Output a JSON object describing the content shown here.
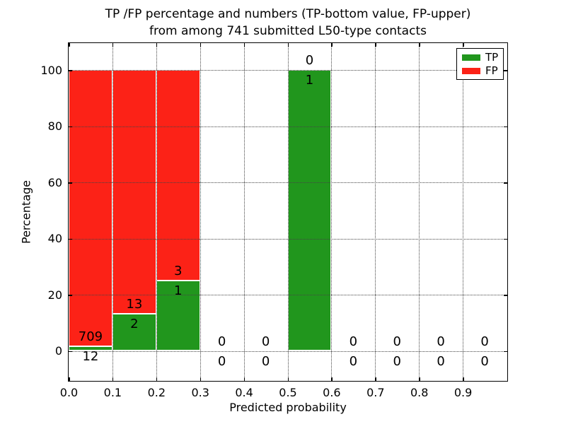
{
  "chart_data": {
    "type": "bar",
    "stacked": true,
    "title": "TP /FP percentage and numbers (TP-bottom value, FP-upper)\nfrom among 741 submitted L50-type contacts",
    "title_line1": "TP /FP percentage and numbers (TP-bottom value, FP-upper)",
    "title_line2": "from among 741 submitted L50-type contacts",
    "xlabel": "Predicted probability",
    "ylabel": "Percentage",
    "total_submitted_contacts": 741,
    "x_tick_labels": [
      "0.0",
      "0.1",
      "0.2",
      "0.3",
      "0.4",
      "0.5",
      "0.6",
      "0.7",
      "0.8",
      "0.9"
    ],
    "x_tick_values": [
      0.0,
      0.1,
      0.2,
      0.3,
      0.4,
      0.5,
      0.6,
      0.7,
      0.8,
      0.9
    ],
    "y_tick_labels": [
      "0",
      "20",
      "40",
      "60",
      "80",
      "100"
    ],
    "y_tick_values": [
      0,
      20,
      40,
      60,
      80,
      100
    ],
    "xlim": [
      0.0,
      1.0
    ],
    "ylim": [
      -11,
      110
    ],
    "grid": "dotted",
    "bin_width": 0.1,
    "bin_starts": [
      0.0,
      0.1,
      0.2,
      0.3,
      0.4,
      0.5,
      0.6,
      0.7,
      0.8,
      0.9
    ],
    "series": [
      {
        "name": "TP",
        "color": "#21961d",
        "counts": [
          12,
          2,
          1,
          0,
          0,
          1,
          0,
          0,
          0,
          0
        ],
        "values_pct": [
          1.66,
          13.33,
          25,
          0,
          0,
          100,
          0,
          0,
          0,
          0
        ]
      },
      {
        "name": "FP",
        "color": "#fc2217",
        "counts": [
          709,
          13,
          3,
          0,
          0,
          0,
          0,
          0,
          0,
          0
        ],
        "values_pct": [
          98.34,
          86.67,
          75,
          0,
          0,
          0,
          0,
          0,
          0,
          0
        ]
      }
    ],
    "bar_edge_color": "#ffffff",
    "annotation_note": "TP count shown below/inside green top, FP count shown above green top",
    "legend": {
      "position": "upper right",
      "entries": [
        "TP",
        "FP"
      ]
    }
  }
}
